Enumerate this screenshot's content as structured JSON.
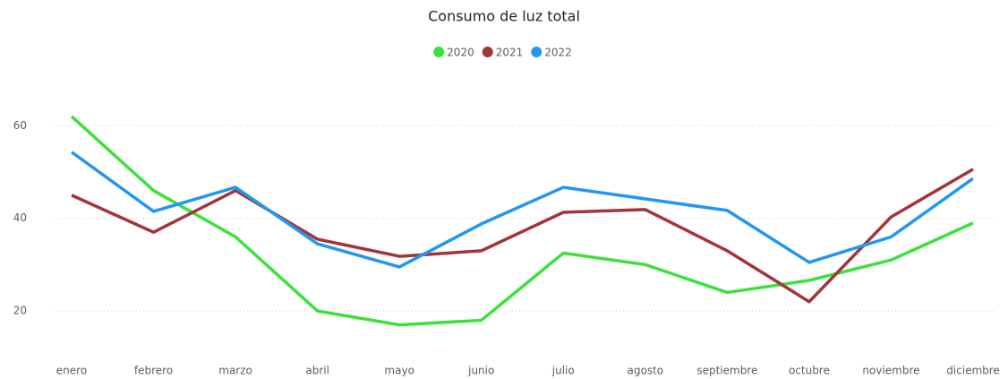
{
  "chart_data": {
    "type": "line",
    "title": "Consumo de luz total",
    "categories": [
      "enero",
      "febrero",
      "marzo",
      "abril",
      "mayo",
      "junio",
      "julio",
      "agosto",
      "septiembre",
      "octubre",
      "noviembre",
      "diciembre"
    ],
    "series": [
      {
        "name": "2020",
        "color": "#3ae23a",
        "values": [
          62,
          46,
          36,
          20,
          17,
          18,
          32.5,
          30,
          24,
          26.6,
          31,
          39
        ]
      },
      {
        "name": "2021",
        "color": "#a4343a",
        "values": [
          45,
          37,
          46,
          35.5,
          31.8,
          33,
          41.3,
          41.9,
          33,
          22,
          40.3,
          50.6
        ]
      },
      {
        "name": "2022",
        "color": "#2196f3",
        "values": [
          54.3,
          41.5,
          46.7,
          34.5,
          29.5,
          38.8,
          46.7,
          44.2,
          41.7,
          30.5,
          36,
          48.6
        ]
      }
    ],
    "ylim": [
      12,
      68
    ],
    "yticks": [
      20,
      40,
      60
    ],
    "grid": true,
    "legend": "top"
  }
}
